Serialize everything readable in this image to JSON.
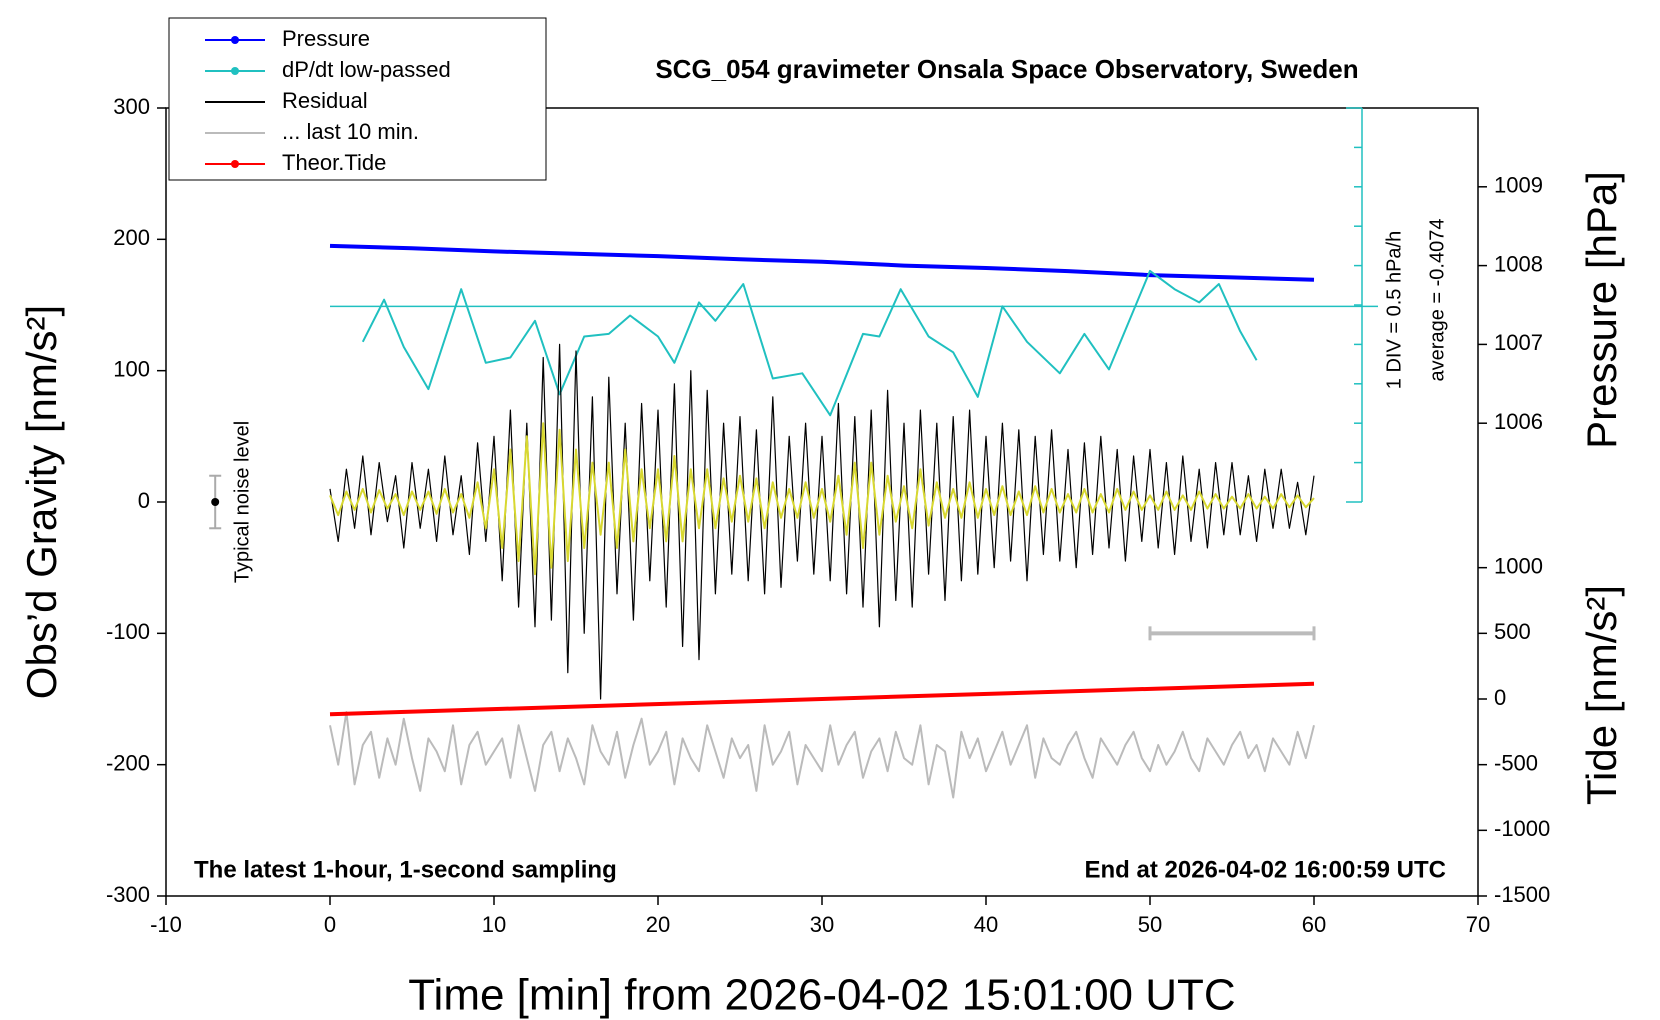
{
  "chart_data": {
    "type": "line",
    "title": "SCG_054 gravimeter Onsala Space Observatory, Sweden",
    "x_label": "Time [min] from 2026-04-02 15:01:00 UTC",
    "y_label": "Obs’d Gravity [nm/s²]",
    "y2_label": "Pressure [hPa]",
    "y3_label": "Tide [nm/s²]",
    "note_left": "The latest 1-hour, 1-second sampling",
    "note_right": "End at 2026-04-02 16:00:59 UTC",
    "dpdt_scale": "1 DIV = 0.5 hPa/h",
    "dpdt_average": "average = -0.4074",
    "average_line": 149,
    "noise_level": {
      "label": "Typical noise level",
      "x": -7,
      "value": 0,
      "error": 20
    },
    "last10_bar": {
      "x": [
        50,
        60
      ],
      "value": -100
    },
    "xlim": [
      -10,
      70
    ],
    "xticks": [
      -10,
      0,
      10,
      20,
      30,
      40,
      50,
      60,
      70
    ],
    "ylim": [
      -300,
      300
    ],
    "yticks": [
      -300,
      -200,
      -100,
      0,
      100,
      200,
      300
    ],
    "y2lim": [
      1000,
      1010
    ],
    "y2ticks": [
      1006,
      1007,
      1008,
      1009
    ],
    "y3lim": [
      -1500,
      4500
    ],
    "y3ticks": [
      -1500,
      -1000,
      -500,
      0,
      500,
      1000
    ],
    "x": [
      0,
      0.5,
      1,
      1.5,
      2,
      2.5,
      3,
      3.5,
      4,
      4.5,
      5,
      5.5,
      6,
      6.5,
      7,
      7.5,
      8,
      8.5,
      9,
      9.5,
      10,
      10.5,
      11,
      11.5,
      12,
      12.5,
      13,
      13.5,
      14,
      14.5,
      15,
      15.5,
      16,
      16.5,
      17,
      17.5,
      18,
      18.5,
      19,
      19.5,
      20,
      20.5,
      21,
      21.5,
      22,
      22.5,
      23,
      23.5,
      24,
      24.5,
      25,
      25.5,
      26,
      26.5,
      27,
      27.5,
      28,
      28.5,
      29,
      29.5,
      30,
      30.5,
      31,
      31.5,
      32,
      32.5,
      33,
      33.5,
      34,
      34.5,
      35,
      35.5,
      36,
      36.5,
      37,
      37.5,
      38,
      38.5,
      39,
      39.5,
      40,
      40.5,
      41,
      41.5,
      42,
      42.5,
      43,
      43.5,
      44,
      44.5,
      45,
      45.5,
      46,
      46.5,
      47,
      47.5,
      48,
      48.5,
      49,
      49.5,
      50,
      50.5,
      51,
      51.5,
      52,
      52.5,
      53,
      53.5,
      54,
      54.5,
      55,
      55.5,
      56,
      56.5,
      57,
      57.5,
      58,
      58.5,
      59,
      59.5,
      60
    ],
    "series": [
      {
        "name": "Pressure",
        "color": "#0000ff",
        "axis": "y2",
        "marker": true,
        "width": 4,
        "x": [
          0,
          5,
          10,
          15,
          20,
          25,
          30,
          35,
          40,
          45,
          50,
          55,
          60
        ],
        "values": [
          1008.25,
          1008.22,
          1008.18,
          1008.15,
          1008.12,
          1008.08,
          1008.05,
          1008.0,
          1007.97,
          1007.93,
          1007.88,
          1007.85,
          1007.82
        ]
      },
      {
        "name": "dP/dt low-passed",
        "color": "#20c0c0",
        "marker": true,
        "width": 2,
        "x": [
          2,
          3.3,
          4.5,
          6,
          8,
          9.5,
          11,
          12.5,
          14,
          15.5,
          17,
          18.3,
          20,
          21,
          22.5,
          23.5,
          25.2,
          27,
          28.8,
          30.5,
          32.5,
          33.5,
          34.8,
          36.5,
          38,
          39.5,
          41,
          42.5,
          44.5,
          46,
          47.5,
          50,
          51.5,
          53,
          54.2,
          55.5,
          56.5
        ],
        "values": [
          122,
          154,
          118,
          86,
          162,
          106,
          110,
          138,
          82,
          126,
          128,
          142,
          126,
          106,
          152,
          138,
          166,
          94,
          98,
          66,
          128,
          126,
          162,
          126,
          114,
          80,
          149,
          122,
          98,
          128,
          101,
          176,
          162,
          152,
          166,
          130,
          108
        ]
      },
      {
        "name": "Residual",
        "color": "#000000",
        "width": 1.2,
        "values": [
          10,
          -30,
          25,
          -20,
          35,
          -25,
          30,
          -15,
          20,
          -35,
          30,
          -20,
          25,
          -30,
          35,
          -25,
          20,
          -40,
          45,
          -30,
          50,
          -60,
          70,
          -80,
          60,
          -95,
          110,
          -90,
          120,
          -130,
          115,
          -100,
          80,
          -150,
          95,
          -70,
          60,
          -90,
          75,
          -60,
          70,
          -80,
          90,
          -110,
          100,
          -120,
          85,
          -70,
          60,
          -55,
          65,
          -60,
          55,
          -70,
          80,
          -65,
          50,
          -45,
          60,
          -55,
          50,
          -60,
          75,
          -70,
          65,
          -80,
          70,
          -95,
          85,
          -75,
          60,
          -80,
          70,
          -55,
          60,
          -75,
          65,
          -60,
          70,
          -55,
          50,
          -50,
          60,
          -45,
          55,
          -60,
          50,
          -40,
          55,
          -45,
          40,
          -50,
          45,
          -40,
          50,
          -35,
          40,
          -45,
          35,
          -30,
          40,
          -35,
          30,
          -40,
          35,
          -30,
          25,
          -35,
          30,
          -25,
          30,
          -25,
          20,
          -30,
          25,
          -20,
          25,
          -20,
          15,
          -25,
          20
        ]
      },
      {
        "name": "... last 10 min.",
        "color": "#bbbbbb",
        "width": 2,
        "values": [
          -170,
          -200,
          -160,
          -215,
          -185,
          -175,
          -210,
          -180,
          -200,
          -165,
          -195,
          -220,
          -180,
          -190,
          -205,
          -170,
          -215,
          -185,
          -175,
          -200,
          -190,
          -180,
          -210,
          -170,
          -195,
          -220,
          -185,
          -175,
          -205,
          -180,
          -195,
          -215,
          -170,
          -190,
          -200,
          -175,
          -210,
          -185,
          -165,
          -200,
          -190,
          -175,
          -215,
          -180,
          -195,
          -205,
          -170,
          -190,
          -210,
          -180,
          -195,
          -185,
          -220,
          -170,
          -200,
          -190,
          -175,
          -215,
          -185,
          -195,
          -205,
          -170,
          -200,
          -185,
          -175,
          -210,
          -190,
          -180,
          -205,
          -175,
          -195,
          -200,
          -170,
          -215,
          -185,
          -190,
          -225,
          -175,
          -195,
          -180,
          -205,
          -190,
          -175,
          -200,
          -185,
          -170,
          -210,
          -180,
          -195,
          -200,
          -185,
          -175,
          -195,
          -210,
          -180,
          -190,
          -200,
          -185,
          -175,
          -195,
          -205,
          -185,
          -200,
          -190,
          -175,
          -195,
          -205,
          -180,
          -190,
          -200,
          -185,
          -175,
          -195,
          -185,
          -205,
          -180,
          -190,
          -200,
          -175,
          -195,
          -170
        ]
      },
      {
        "name": "Theor.Tide",
        "color": "#ff0000",
        "axis": "y3",
        "marker": true,
        "width": 4,
        "x": [
          0,
          60
        ],
        "values": [
          -116,
          116
        ]
      },
      {
        "color": "#d8d830",
        "width": 2,
        "values": [
          5,
          -10,
          8,
          -6,
          10,
          -8,
          9,
          -5,
          6,
          -10,
          8,
          -6,
          8,
          -9,
          10,
          -8,
          6,
          -12,
          15,
          -20,
          25,
          -35,
          40,
          -45,
          50,
          -55,
          60,
          -50,
          55,
          -45,
          40,
          -35,
          30,
          -25,
          30,
          -35,
          40,
          -30,
          25,
          -20,
          25,
          -30,
          35,
          -30,
          25,
          -20,
          25,
          -20,
          18,
          -15,
          20,
          -15,
          18,
          -20,
          15,
          -12,
          10,
          -12,
          15,
          -12,
          10,
          -15,
          20,
          -25,
          30,
          -35,
          30,
          -25,
          20,
          -15,
          12,
          -20,
          25,
          -18,
          15,
          -12,
          10,
          -12,
          15,
          -12,
          10,
          -10,
          12,
          -10,
          8,
          -10,
          12,
          -8,
          10,
          -8,
          6,
          -8,
          10,
          -8,
          6,
          -8,
          10,
          -6,
          8,
          -6,
          5,
          -6,
          8,
          -6,
          5,
          -6,
          8,
          -5,
          6,
          -5,
          4,
          -5,
          6,
          -5,
          4,
          -5,
          6,
          -4,
          5,
          -4,
          3
        ]
      }
    ]
  }
}
